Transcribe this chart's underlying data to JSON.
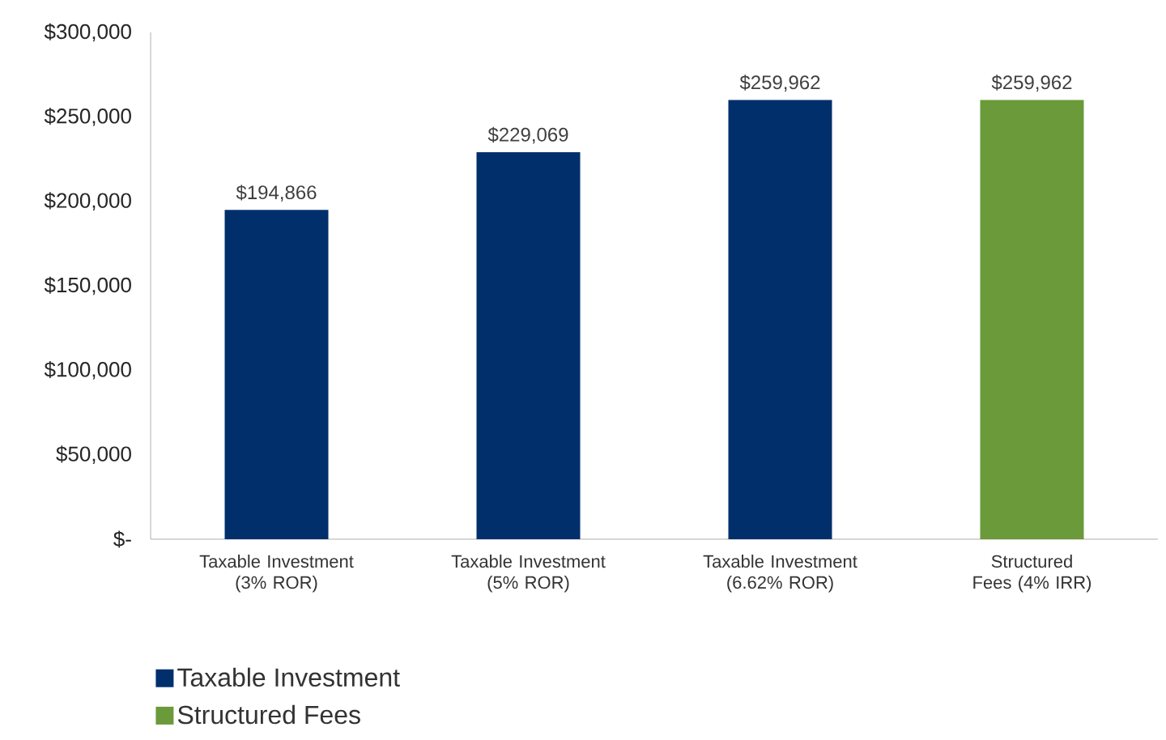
{
  "chart_data": {
    "type": "bar",
    "categories": [
      "Taxable Investment (3% ROR)",
      "Taxable Investment (5% ROR)",
      "Taxable Investment (6.62% ROR)",
      "Structured Fees (4% IRR)"
    ],
    "series": [
      {
        "name": "Taxable Investment",
        "color": "#002f6c",
        "values": [
          194866,
          229069,
          259962,
          null
        ],
        "value_labels": [
          "$194,866",
          "$229,069",
          "$259,962",
          null
        ]
      },
      {
        "name": "Structured Fees",
        "color": "#6a9a3a",
        "values": [
          null,
          null,
          null,
          259962
        ],
        "value_labels": [
          null,
          null,
          null,
          "$259,962"
        ]
      }
    ],
    "ylim": [
      0,
      300000
    ],
    "yticks": [
      {
        "value": 0,
        "label": "$-"
      },
      {
        "value": 50000,
        "label": "$50,000"
      },
      {
        "value": 100000,
        "label": "$100,000"
      },
      {
        "value": 150000,
        "label": "$150,000"
      },
      {
        "value": 200000,
        "label": "$200,000"
      },
      {
        "value": 250000,
        "label": "$250,000"
      },
      {
        "value": 300000,
        "label": "$300,000"
      }
    ],
    "grid": false,
    "legend": "bottom left"
  }
}
